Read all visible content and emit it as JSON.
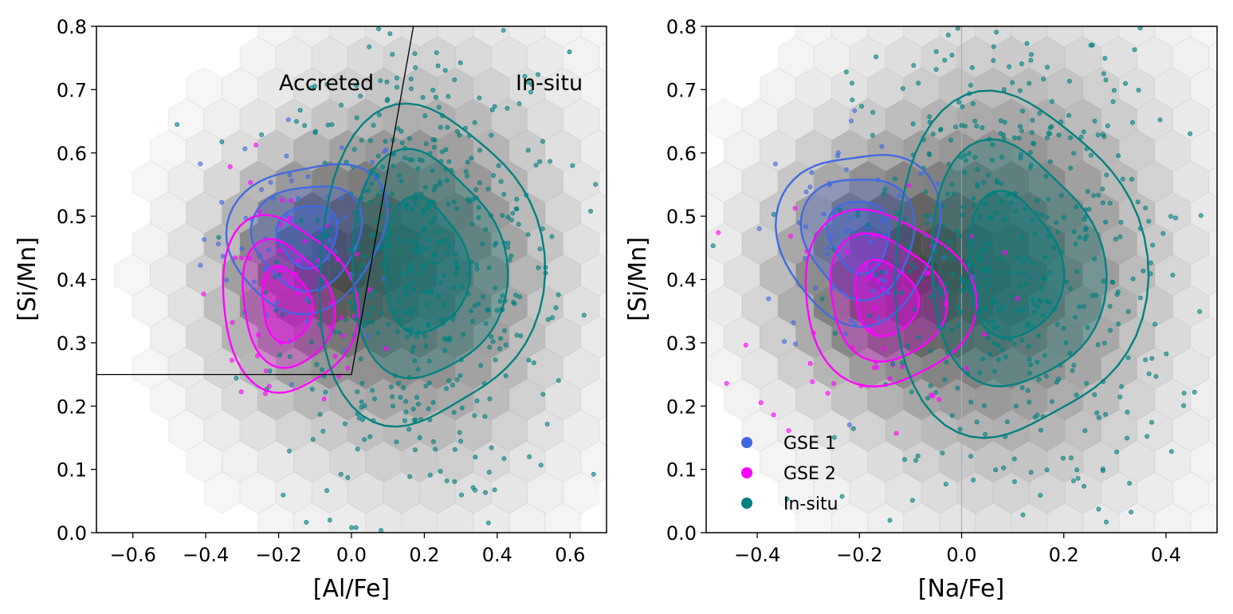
{
  "chart_data": [
    {
      "type": "scatter",
      "panel": "left",
      "xlabel": "[Al/Fe]",
      "ylabel": "[Si/Mn]",
      "xlim": [
        -0.7,
        0.7
      ],
      "ylim": [
        0.0,
        0.8
      ],
      "xticks": [
        -0.6,
        -0.4,
        -0.2,
        0.0,
        0.2,
        0.4,
        0.6
      ],
      "xtick_labels": [
        "−0.6",
        "−0.4",
        "−0.2",
        "0.0",
        "0.2",
        "0.4",
        "0.6"
      ],
      "yticks": [
        0.0,
        0.1,
        0.2,
        0.3,
        0.4,
        0.5,
        0.6,
        0.7,
        0.8
      ],
      "ytick_labels": [
        "0.0",
        "0.1",
        "0.2",
        "0.3",
        "0.4",
        "0.5",
        "0.6",
        "0.7",
        "0.8"
      ],
      "grid": false,
      "annotations": [
        {
          "text": "Accreted",
          "x": -0.2,
          "y": 0.71
        },
        {
          "text": "In-situ",
          "x": 0.45,
          "y": 0.71
        }
      ],
      "dividing_line": [
        [
          -0.7,
          0.25
        ],
        [
          0.0,
          0.25
        ],
        [
          0.17,
          0.8
        ]
      ],
      "hexbin_background": "all stars, grey density",
      "series": [
        {
          "name": "GSE 1",
          "color": "#4169e1",
          "center": [
            -0.12,
            0.47
          ],
          "spread": [
            0.11,
            0.06
          ],
          "kde_peak": [
            -0.12,
            0.47
          ]
        },
        {
          "name": "GSE 2",
          "color": "#ff00ff",
          "center": [
            -0.18,
            0.35
          ],
          "spread": [
            0.1,
            0.07
          ],
          "kde_peak": [
            -0.18,
            0.36
          ]
        },
        {
          "name": "In-situ",
          "color": "#008080",
          "center": [
            0.2,
            0.42
          ],
          "spread": [
            0.15,
            0.13
          ],
          "kde_peak": [
            0.2,
            0.42
          ]
        }
      ]
    },
    {
      "type": "scatter",
      "panel": "right",
      "xlabel": "[Na/Fe]",
      "ylabel": "[Si/Mn]",
      "xlim": [
        -0.5,
        0.5
      ],
      "ylim": [
        0.0,
        0.8
      ],
      "xticks": [
        -0.4,
        -0.2,
        0.0,
        0.2,
        0.4
      ],
      "xtick_labels": [
        "−0.4",
        "−0.2",
        "0.0",
        "0.2",
        "0.4"
      ],
      "yticks": [
        0.0,
        0.1,
        0.2,
        0.3,
        0.4,
        0.5,
        0.6,
        0.7,
        0.8
      ],
      "ytick_labels": [
        "0.0",
        "0.1",
        "0.2",
        "0.3",
        "0.4",
        "0.5",
        "0.6",
        "0.7",
        "0.8"
      ],
      "grid": false,
      "vertical_line_x": 0.0,
      "legend_placement": "lower-left",
      "legend": [
        "GSE 1",
        "GSE 2",
        "In-situ"
      ],
      "hexbin_background": "all stars, grey density",
      "series": [
        {
          "name": "GSE 1",
          "color": "#4169e1",
          "center": [
            -0.2,
            0.47
          ],
          "spread": [
            0.08,
            0.07
          ],
          "kde_peak": [
            -0.2,
            0.47
          ]
        },
        {
          "name": "GSE 2",
          "color": "#ff00ff",
          "center": [
            -0.17,
            0.36
          ],
          "spread": [
            0.09,
            0.07
          ],
          "kde_peak": [
            -0.15,
            0.37
          ]
        },
        {
          "name": "In-situ",
          "color": "#008080",
          "center": [
            0.1,
            0.42
          ],
          "spread": [
            0.12,
            0.14
          ],
          "kde_peak": [
            0.1,
            0.42
          ]
        }
      ]
    }
  ]
}
